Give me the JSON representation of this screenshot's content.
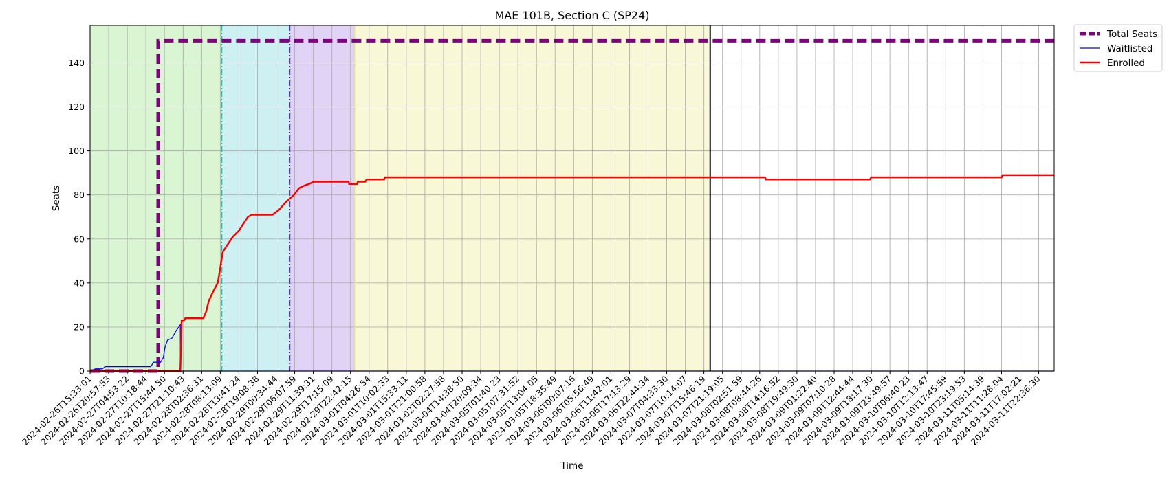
{
  "chart_data": {
    "type": "line",
    "title": "MAE 101B, Section C (SP24)",
    "xlabel": "Time",
    "ylabel": "Seats",
    "xlim": [
      "2024-02-26T15:33:01",
      "2024-03-12T04:00:00"
    ],
    "ylim": [
      0,
      157
    ],
    "grid": true,
    "legend_position": "outside-top-right",
    "x_tick_labels": [
      "2024-02-26T15:33:01",
      "2024-02-26T20:57:53",
      "2024-02-27T04:53:22",
      "2024-02-27T10:18:44",
      "2024-02-27T15:44:50",
      "2024-02-27T21:10:43",
      "2024-02-28T02:36:31",
      "2024-02-28T08:13:09",
      "2024-02-28T13:41:24",
      "2024-02-28T19:08:38",
      "2024-02-29T00:34:44",
      "2024-02-29T06:07:59",
      "2024-02-29T11:39:31",
      "2024-02-29T17:15:09",
      "2024-02-29T22:42:15",
      "2024-03-01T04:26:54",
      "2024-03-01T10:02:33",
      "2024-03-01T15:33:11",
      "2024-03-01T21:00:58",
      "2024-03-02T02:27:58",
      "2024-03-04T14:38:50",
      "2024-03-04T20:09:34",
      "2024-03-05T01:40:23",
      "2024-03-05T07:31:52",
      "2024-03-05T13:04:05",
      "2024-03-05T18:35:49",
      "2024-03-06T00:07:16",
      "2024-03-06T05:56:49",
      "2024-03-06T11:42:01",
      "2024-03-06T17:13:29",
      "2024-03-06T22:44:34",
      "2024-03-07T04:33:30",
      "2024-03-07T10:14:07",
      "2024-03-07T15:46:19",
      "2024-03-07T21:19:05",
      "2024-03-08T02:51:59",
      "2024-03-08T08:44:26",
      "2024-03-08T14:16:52",
      "2024-03-08T19:49:30",
      "2024-03-09T01:22:40",
      "2024-03-09T07:10:28",
      "2024-03-09T12:44:44",
      "2024-03-09T18:17:30",
      "2024-03-09T23:49:57",
      "2024-03-10T06:40:23",
      "2024-03-10T12:13:47",
      "2024-03-10T17:45:59",
      "2024-03-10T23:19:53",
      "2024-03-11T05:14:39",
      "2024-03-11T11:28:04",
      "2024-03-11T17:02:21",
      "2024-03-11T22:36:30"
    ],
    "y_ticks": [
      0,
      20,
      40,
      60,
      80,
      100,
      120,
      140
    ],
    "shaded_periods": [
      {
        "start": "2024-02-26T15:33:01",
        "end": "2024-02-28T15:10:00",
        "color": "#d9f5d2"
      },
      {
        "start": "2024-02-28T15:10:00",
        "end": "2024-02-29T15:45:00",
        "color": "#cdf1f3"
      },
      {
        "start": "2024-02-29T15:45:00",
        "end": "2024-03-01T15:10:00",
        "color": "#e1d3f5"
      },
      {
        "start": "2024-03-01T15:10:00",
        "end": "2024-03-06T23:40:00",
        "color": "#f8f8d7"
      }
    ],
    "vertical_lines": [
      {
        "x": "2024-02-28T15:10:00",
        "color": "#17becf",
        "style": "dashdot"
      },
      {
        "x": "2024-02-29T15:45:00",
        "color": "#6a2cd8",
        "style": "dashdot"
      },
      {
        "x": "2024-03-01T15:10:00",
        "color": "#e8e870",
        "style": "solid"
      },
      {
        "x": "2024-03-06T23:40:00",
        "color": "#000000",
        "style": "solid"
      }
    ],
    "series": [
      {
        "name": "Total Seats",
        "color": "#800080",
        "style": "dashed",
        "points": [
          [
            "2024-02-26T15:33:01",
            0
          ],
          [
            "2024-02-27T16:10:00",
            0
          ],
          [
            "2024-02-27T16:10:00",
            150
          ],
          [
            "2024-03-12T04:00:00",
            150
          ]
        ]
      },
      {
        "name": "Waitlisted",
        "color": "#0000ff",
        "style": "solid",
        "points": [
          [
            "2024-02-26T15:33:01",
            0
          ],
          [
            "2024-02-26T17:30:00",
            1
          ],
          [
            "2024-02-26T20:00:00",
            1
          ],
          [
            "2024-02-26T20:57:53",
            2
          ],
          [
            "2024-02-27T13:30:00",
            2
          ],
          [
            "2024-02-27T14:30:00",
            4
          ],
          [
            "2024-02-27T17:00:00",
            4
          ],
          [
            "2024-02-27T18:00:00",
            6
          ],
          [
            "2024-02-27T18:40:00",
            11
          ],
          [
            "2024-02-27T19:30:00",
            14
          ],
          [
            "2024-02-27T21:10:43",
            15
          ],
          [
            "2024-02-27T22:30:00",
            18
          ],
          [
            "2024-02-28T00:10:00",
            21
          ],
          [
            "2024-02-28T00:12:00",
            0
          ],
          [
            "2024-03-12T04:00:00",
            0
          ]
        ]
      },
      {
        "name": "Enrolled",
        "color": "#ff0000",
        "style": "solid",
        "points": [
          [
            "2024-02-26T15:33:01",
            0
          ],
          [
            "2024-02-28T00:10:00",
            0
          ],
          [
            "2024-02-28T00:40:00",
            23
          ],
          [
            "2024-02-28T01:30:00",
            23
          ],
          [
            "2024-02-28T02:00:00",
            24
          ],
          [
            "2024-02-28T08:30:00",
            24
          ],
          [
            "2024-02-28T09:30:00",
            27
          ],
          [
            "2024-02-28T10:30:00",
            32
          ],
          [
            "2024-02-28T12:00:00",
            36
          ],
          [
            "2024-02-28T13:41:24",
            40
          ],
          [
            "2024-02-28T14:30:00",
            46
          ],
          [
            "2024-02-28T15:30:00",
            54
          ],
          [
            "2024-02-28T17:00:00",
            57
          ],
          [
            "2024-02-28T19:08:38",
            61
          ],
          [
            "2024-02-28T21:30:00",
            64
          ],
          [
            "2024-02-28T23:00:00",
            67
          ],
          [
            "2024-02-29T00:34:44",
            70
          ],
          [
            "2024-02-29T02:00:00",
            71
          ],
          [
            "2024-02-29T09:30:00",
            71
          ],
          [
            "2024-02-29T11:39:31",
            73
          ],
          [
            "2024-02-29T14:30:00",
            77
          ],
          [
            "2024-02-29T17:15:09",
            80
          ],
          [
            "2024-02-29T19:00:00",
            83
          ],
          [
            "2024-02-29T20:30:00",
            84
          ],
          [
            "2024-02-29T22:42:15",
            85
          ],
          [
            "2024-03-01T00:30:00",
            86
          ],
          [
            "2024-03-01T13:00:00",
            86
          ],
          [
            "2024-03-01T13:10:00",
            85
          ],
          [
            "2024-03-01T16:00:00",
            85
          ],
          [
            "2024-03-01T16:20:00",
            86
          ],
          [
            "2024-03-01T19:00:00",
            86
          ],
          [
            "2024-03-01T19:30:00",
            87
          ],
          [
            "2024-03-02T01:50:00",
            87
          ],
          [
            "2024-03-02T02:10:00",
            88
          ],
          [
            "2024-03-07T19:30:00",
            88
          ],
          [
            "2024-03-07T19:50:00",
            87
          ],
          [
            "2024-03-09T09:30:00",
            87
          ],
          [
            "2024-03-09T09:50:00",
            88
          ],
          [
            "2024-03-11T09:00:00",
            88
          ],
          [
            "2024-03-11T09:20:00",
            89
          ],
          [
            "2024-03-12T04:00:00",
            89
          ]
        ]
      }
    ]
  }
}
